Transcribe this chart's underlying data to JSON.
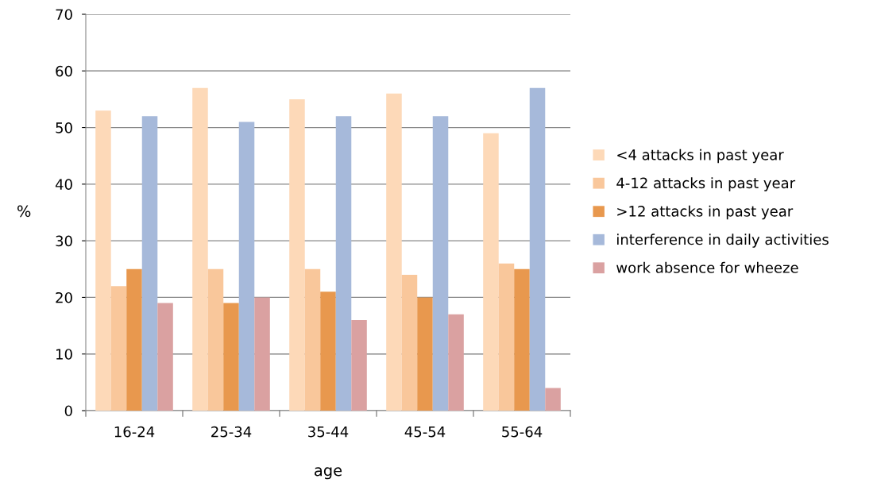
{
  "chart_data": {
    "type": "bar",
    "xlabel": "age",
    "ylabel": "%",
    "categories": [
      "16-24",
      "25-34",
      "35-44",
      "45-54",
      "55-64"
    ],
    "series": [
      {
        "name": "<4 attacks in past year",
        "color": "#fdd9b8",
        "values": [
          53,
          57,
          55,
          56,
          49
        ]
      },
      {
        "name": "4-12 attacks in past year",
        "color": "#f9c79b",
        "values": [
          22,
          25,
          25,
          24,
          26
        ]
      },
      {
        "name": ">12 attacks in past year",
        "color": "#e8984e",
        "values": [
          25,
          19,
          21,
          20,
          25
        ]
      },
      {
        "name": "interference in daily activities",
        "color": "#a6b9da",
        "values": [
          52,
          51,
          52,
          52,
          57
        ]
      },
      {
        "name": "work absence for wheeze",
        "color": "#daa1a1",
        "values": [
          19,
          20,
          16,
          17,
          4
        ]
      }
    ],
    "ylim": [
      0,
      70
    ],
    "yticks": [
      0,
      10,
      20,
      30,
      40,
      50,
      60,
      70
    ],
    "grid": "y",
    "legend": "right"
  }
}
